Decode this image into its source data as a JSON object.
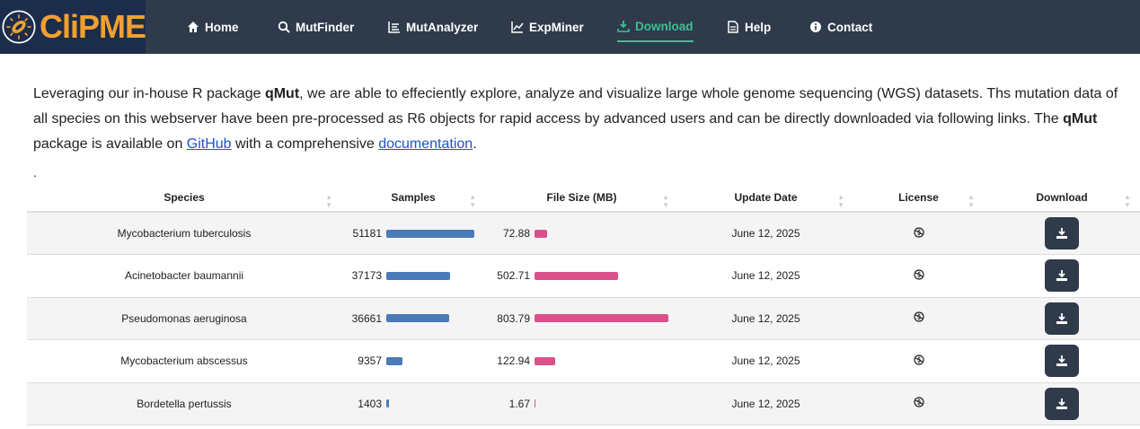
{
  "brand": {
    "name": "CliPME"
  },
  "nav": [
    {
      "label": "Home",
      "icon": "home-icon"
    },
    {
      "label": "MutFinder",
      "icon": "search-icon"
    },
    {
      "label": "MutAnalyzer",
      "icon": "list-icon"
    },
    {
      "label": "ExpMiner",
      "icon": "chart-line-icon"
    },
    {
      "label": "Download",
      "icon": "download-icon",
      "active": true
    },
    {
      "label": "Help",
      "icon": "file-icon"
    },
    {
      "label": "Contact",
      "icon": "info-icon"
    }
  ],
  "intro": {
    "p1": "Leveraging our in-house R package ",
    "qmut": "qMut",
    "p2": ", we are able to effeciently explore, analyze and visualize large whole genome sequencing (WGS) datasets. Ths mutation data of all species on this webserver have been pre-processed as R6 objects for rapid access by advanced users and can be directly downloaded via following links. The ",
    "p3": " package is available on ",
    "github": "GitHub",
    "p4": " with a comprehensive ",
    "doc": "documentation",
    "p5": "."
  },
  "dot": ".",
  "table": {
    "headers": [
      "Species",
      "Samples",
      "File Size (MB)",
      "Update Date",
      "License",
      "Download"
    ],
    "rows": [
      {
        "species": "Mycobacterium tuberculosis",
        "samples": 51181,
        "size": 72.88,
        "date": "June 12, 2025"
      },
      {
        "species": "Acinetobacter baumannii",
        "samples": 37173,
        "size": 502.71,
        "date": "June 12, 2025"
      },
      {
        "species": "Pseudomonas aeruginosa",
        "samples": 36661,
        "size": 803.79,
        "date": "June 12, 2025"
      },
      {
        "species": "Mycobacterium abscessus",
        "samples": 9357,
        "size": 122.94,
        "date": "June 12, 2025"
      },
      {
        "species": "Bordetella pertussis",
        "samples": 1403,
        "size": 1.67,
        "date": "June 12, 2025"
      }
    ]
  },
  "colors": {
    "samples_bar": "#4a7ab8",
    "size_bar": "#d9508a",
    "active": "#3fbf94"
  }
}
